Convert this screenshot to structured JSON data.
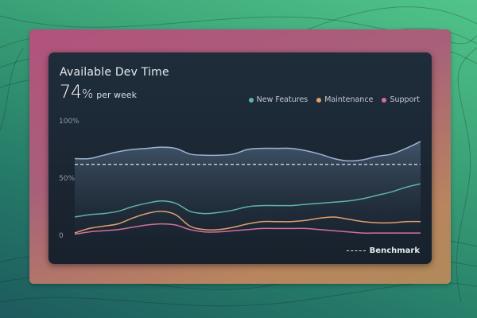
{
  "card": {
    "title": "Available Dev Time",
    "metric_value": "74",
    "metric_unit": "%",
    "metric_suffix": "per week"
  },
  "legend": [
    {
      "label": "New Features",
      "color": "#5fb3a8"
    },
    {
      "label": "Maintenance",
      "color": "#e0a06c"
    },
    {
      "label": "Support",
      "color": "#d2709e"
    }
  ],
  "benchmark_label": "Benchmark",
  "chart_data": {
    "type": "area",
    "y_ticks": [
      "100%",
      "50%",
      "0"
    ],
    "ylim": [
      0,
      100
    ],
    "benchmark": 62,
    "x": [
      0,
      1,
      2,
      3,
      4,
      5,
      6,
      7,
      8,
      9,
      10,
      11,
      12,
      13,
      14,
      15,
      16,
      17,
      18,
      19,
      20,
      21,
      22,
      23,
      24
    ],
    "total": [
      67,
      67,
      70,
      73,
      75,
      76,
      77,
      76,
      71,
      70,
      70,
      71,
      75,
      76,
      76,
      76,
      74,
      71,
      67,
      65,
      66,
      69,
      71,
      76,
      82
    ],
    "series": [
      {
        "name": "New Features",
        "color": "#5fb3a8",
        "values": [
          16,
          18,
          19,
          21,
          25,
          28,
          30,
          28,
          21,
          19,
          20,
          22,
          25,
          26,
          26,
          26,
          27,
          28,
          29,
          30,
          32,
          35,
          38,
          42,
          45
        ]
      },
      {
        "name": "Maintenance",
        "color": "#e0a06c",
        "values": [
          2,
          6,
          8,
          10,
          15,
          19,
          21,
          18,
          8,
          5,
          5,
          7,
          10,
          12,
          12,
          12,
          13,
          15,
          16,
          14,
          12,
          11,
          11,
          12,
          12
        ]
      },
      {
        "name": "Support",
        "color": "#d2709e",
        "values": [
          1,
          3,
          4,
          5,
          7,
          9,
          10,
          9,
          5,
          3,
          3,
          4,
          5,
          6,
          6,
          6,
          6,
          5,
          4,
          3,
          2,
          2,
          2,
          2,
          2
        ]
      }
    ]
  }
}
